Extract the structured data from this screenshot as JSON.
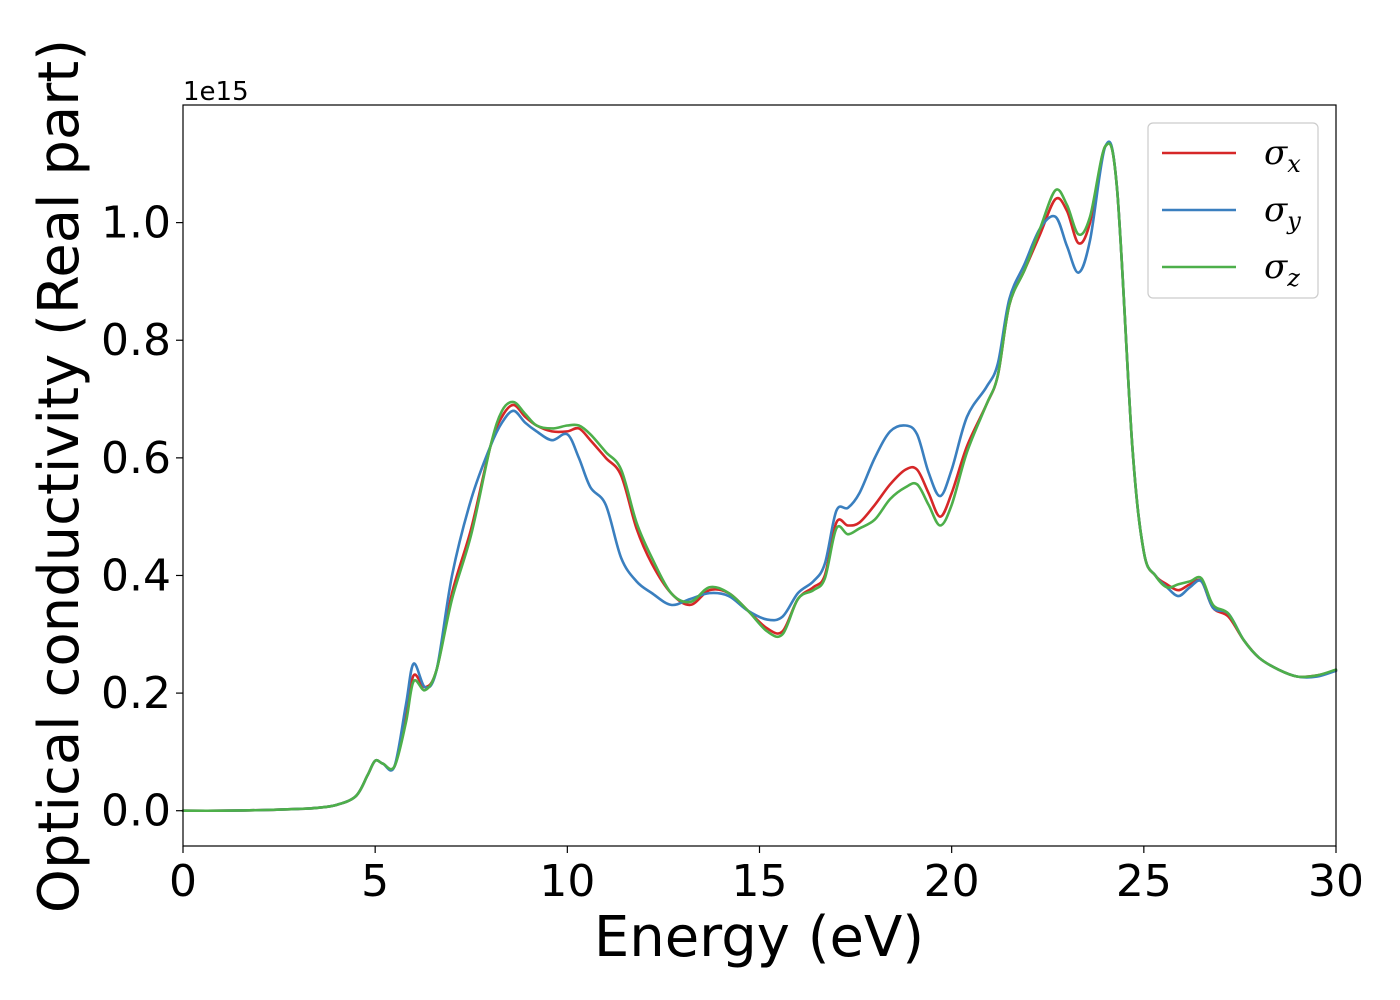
{
  "chart_data": {
    "type": "line",
    "xlabel": "Energy (eV)",
    "ylabel": "Optical conductivity (Real part)",
    "y_offset_label": "1e15",
    "xlim": [
      0,
      30
    ],
    "ylim": [
      -0.06,
      1.2
    ],
    "y_scale_factor": 1000000000000000.0,
    "xticks": [
      0,
      5,
      10,
      15,
      20,
      25,
      30
    ],
    "xtick_labels": [
      "0",
      "5",
      "10",
      "15",
      "20",
      "25",
      "30"
    ],
    "yticks": [
      0.0,
      0.2,
      0.4,
      0.6,
      0.8,
      1.0
    ],
    "ytick_labels": [
      "0.0",
      "0.2",
      "0.4",
      "0.6",
      "0.8",
      "1.0"
    ],
    "grid": false,
    "legend_position": "top-right",
    "series": [
      {
        "name": "σx",
        "legend_base": "σ",
        "legend_sub": "x",
        "color": "#d62728",
        "x": [
          0,
          1,
          2,
          3,
          3.5,
          4,
          4.5,
          4.8,
          5.0,
          5.2,
          5.5,
          5.8,
          6.0,
          6.3,
          6.6,
          7.0,
          7.5,
          8.0,
          8.3,
          8.6,
          8.9,
          9.2,
          9.6,
          10.0,
          10.3,
          10.6,
          11.0,
          11.4,
          11.8,
          12.2,
          12.7,
          13.2,
          13.7,
          14.2,
          14.7,
          15.2,
          15.6,
          16.0,
          16.4,
          16.7,
          17.0,
          17.3,
          17.6,
          18.0,
          18.4,
          18.8,
          19.1,
          19.4,
          19.7,
          20.0,
          20.4,
          20.9,
          21.2,
          21.5,
          21.9,
          22.3,
          22.7,
          23.0,
          23.3,
          23.6,
          24.0,
          24.3,
          24.7,
          25.0,
          25.3,
          25.6,
          25.9,
          26.2,
          26.5,
          26.8,
          27.2,
          27.6,
          28.0,
          28.5,
          29.0,
          29.5,
          30.0
        ],
        "values": [
          0,
          0,
          0.001,
          0.003,
          0.005,
          0.01,
          0.025,
          0.06,
          0.085,
          0.08,
          0.075,
          0.16,
          0.23,
          0.21,
          0.24,
          0.37,
          0.48,
          0.62,
          0.67,
          0.69,
          0.67,
          0.655,
          0.645,
          0.645,
          0.65,
          0.63,
          0.6,
          0.57,
          0.48,
          0.42,
          0.37,
          0.35,
          0.375,
          0.37,
          0.34,
          0.31,
          0.305,
          0.36,
          0.38,
          0.4,
          0.49,
          0.485,
          0.49,
          0.52,
          0.555,
          0.58,
          0.58,
          0.54,
          0.5,
          0.54,
          0.62,
          0.69,
          0.74,
          0.86,
          0.92,
          0.98,
          1.04,
          1.02,
          0.965,
          1.0,
          1.13,
          1.06,
          0.62,
          0.44,
          0.4,
          0.385,
          0.375,
          0.385,
          0.39,
          0.345,
          0.33,
          0.29,
          0.26,
          0.24,
          0.228,
          0.23,
          0.238
        ]
      },
      {
        "name": "σy",
        "legend_base": "σ",
        "legend_sub": "y",
        "color": "#3a7fbf",
        "x": [
          0,
          1,
          2,
          3,
          3.5,
          4,
          4.5,
          4.8,
          5.0,
          5.2,
          5.5,
          5.8,
          6.0,
          6.3,
          6.6,
          7.0,
          7.5,
          8.0,
          8.3,
          8.6,
          8.9,
          9.2,
          9.6,
          10.0,
          10.3,
          10.6,
          11.0,
          11.4,
          11.8,
          12.2,
          12.7,
          13.2,
          13.7,
          14.2,
          14.7,
          15.2,
          15.6,
          16.0,
          16.4,
          16.7,
          17.0,
          17.3,
          17.6,
          18.0,
          18.4,
          18.8,
          19.1,
          19.4,
          19.7,
          20.0,
          20.4,
          20.9,
          21.2,
          21.5,
          21.9,
          22.3,
          22.7,
          23.0,
          23.3,
          23.6,
          24.0,
          24.3,
          24.7,
          25.0,
          25.3,
          25.6,
          25.9,
          26.2,
          26.5,
          26.8,
          27.2,
          27.6,
          28.0,
          28.5,
          29.0,
          29.5,
          30.0
        ],
        "values": [
          0,
          0,
          0.001,
          0.003,
          0.005,
          0.01,
          0.025,
          0.06,
          0.085,
          0.08,
          0.075,
          0.18,
          0.25,
          0.21,
          0.24,
          0.4,
          0.53,
          0.62,
          0.66,
          0.68,
          0.66,
          0.645,
          0.63,
          0.64,
          0.6,
          0.55,
          0.52,
          0.43,
          0.39,
          0.37,
          0.35,
          0.36,
          0.37,
          0.365,
          0.34,
          0.325,
          0.33,
          0.37,
          0.39,
          0.42,
          0.51,
          0.515,
          0.54,
          0.6,
          0.645,
          0.655,
          0.64,
          0.575,
          0.535,
          0.58,
          0.67,
          0.72,
          0.76,
          0.87,
          0.93,
          0.99,
          1.01,
          0.96,
          0.915,
          0.97,
          1.13,
          1.06,
          0.62,
          0.44,
          0.4,
          0.38,
          0.365,
          0.38,
          0.39,
          0.345,
          0.335,
          0.29,
          0.26,
          0.24,
          0.228,
          0.228,
          0.238
        ]
      },
      {
        "name": "σz",
        "legend_base": "σ",
        "legend_sub": "z",
        "color": "#4daf4a",
        "x": [
          0,
          1,
          2,
          3,
          3.5,
          4,
          4.5,
          4.8,
          5.0,
          5.2,
          5.5,
          5.8,
          6.0,
          6.3,
          6.6,
          7.0,
          7.5,
          8.0,
          8.3,
          8.6,
          8.9,
          9.2,
          9.6,
          10.0,
          10.3,
          10.6,
          11.0,
          11.4,
          11.8,
          12.2,
          12.7,
          13.2,
          13.7,
          14.2,
          14.7,
          15.2,
          15.6,
          16.0,
          16.4,
          16.7,
          17.0,
          17.3,
          17.6,
          18.0,
          18.4,
          18.8,
          19.1,
          19.4,
          19.7,
          20.0,
          20.4,
          20.9,
          21.2,
          21.5,
          21.9,
          22.3,
          22.7,
          23.0,
          23.3,
          23.6,
          24.0,
          24.3,
          24.7,
          25.0,
          25.3,
          25.6,
          25.9,
          26.2,
          26.5,
          26.8,
          27.2,
          27.6,
          28.0,
          28.5,
          29.0,
          29.5,
          30.0
        ],
        "values": [
          0,
          0,
          0.001,
          0.003,
          0.005,
          0.01,
          0.025,
          0.06,
          0.085,
          0.08,
          0.075,
          0.15,
          0.22,
          0.205,
          0.24,
          0.36,
          0.47,
          0.62,
          0.68,
          0.695,
          0.675,
          0.655,
          0.65,
          0.655,
          0.655,
          0.64,
          0.61,
          0.58,
          0.49,
          0.43,
          0.37,
          0.355,
          0.38,
          0.37,
          0.34,
          0.305,
          0.3,
          0.36,
          0.375,
          0.395,
          0.48,
          0.47,
          0.48,
          0.495,
          0.53,
          0.55,
          0.555,
          0.52,
          0.485,
          0.52,
          0.61,
          0.69,
          0.74,
          0.86,
          0.92,
          0.99,
          1.055,
          1.03,
          0.98,
          1.01,
          1.13,
          1.06,
          0.62,
          0.44,
          0.4,
          0.38,
          0.385,
          0.39,
          0.395,
          0.35,
          0.335,
          0.29,
          0.26,
          0.24,
          0.228,
          0.23,
          0.24
        ]
      }
    ]
  }
}
